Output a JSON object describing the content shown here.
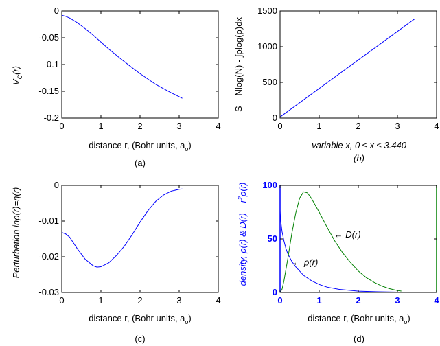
{
  "colors": {
    "blue": "#0000ff",
    "green": "#008000",
    "axis": "#000000"
  },
  "chart_data": [
    {
      "id": "a",
      "type": "line",
      "caption": "(a)",
      "ylabel_main": "V",
      "ylabel_sub": "C",
      "ylabel_tail": "(r)",
      "xlabel_main": "distance r, (Bohr units, a",
      "xlabel_sub": "o",
      "xlabel_tail": ")",
      "xlim": [
        0,
        4
      ],
      "ylim": [
        -0.2,
        0
      ],
      "xticks": [
        0,
        1,
        2,
        3,
        4
      ],
      "xtick_labels": [
        "0",
        "1",
        "2",
        "3",
        "4"
      ],
      "yticks": [
        -0.2,
        -0.15,
        -0.1,
        -0.05,
        0
      ],
      "ytick_labels": [
        "-0.2",
        "-0.15",
        "-0.1",
        "-0.05",
        "0"
      ],
      "series": [
        {
          "color": "#0000ff",
          "x": [
            0,
            0.1,
            0.2,
            0.4,
            0.6,
            0.8,
            1.0,
            1.2,
            1.5,
            1.8,
            2.0,
            2.4,
            2.8,
            3.08
          ],
          "y": [
            -0.008,
            -0.01,
            -0.013,
            -0.022,
            -0.033,
            -0.045,
            -0.058,
            -0.071,
            -0.089,
            -0.106,
            -0.117,
            -0.137,
            -0.153,
            -0.163
          ]
        }
      ]
    },
    {
      "id": "b",
      "type": "line",
      "caption": "(b)",
      "ylabel": "S = Nlog(N) - ∫ρlog(ρ)dx",
      "xlabel": "variable x, 0 ≤ x ≤ 3.440",
      "xlim": [
        0,
        4
      ],
      "ylim": [
        0,
        1500
      ],
      "xticks": [
        0,
        1,
        2,
        3,
        4
      ],
      "xtick_labels": [
        "0",
        "1",
        "2",
        "3",
        "4"
      ],
      "yticks": [
        0,
        500,
        1000,
        1500
      ],
      "ytick_labels": [
        "0",
        "500",
        "1000",
        "1500"
      ],
      "series": [
        {
          "color": "#0000ff",
          "x": [
            0,
            3.44
          ],
          "y": [
            15,
            1390
          ]
        }
      ]
    },
    {
      "id": "c",
      "type": "line",
      "caption": "(c)",
      "ylabel": "Perturbation inρ(r)=η(r)",
      "xlabel_main": "distance r, (Bohr units, a",
      "xlabel_sub": "o",
      "xlabel_tail": ")",
      "xlim": [
        0,
        4
      ],
      "ylim": [
        -0.03,
        0
      ],
      "xticks": [
        0,
        1,
        2,
        3,
        4
      ],
      "xtick_labels": [
        "0",
        "1",
        "2",
        "3",
        "4"
      ],
      "yticks": [
        -0.03,
        -0.02,
        -0.01,
        0
      ],
      "ytick_labels": [
        "-0.03",
        "-0.02",
        "-0.01",
        "0"
      ],
      "series": [
        {
          "color": "#0000ff",
          "x": [
            0,
            0.1,
            0.2,
            0.4,
            0.6,
            0.8,
            0.9,
            1.0,
            1.2,
            1.4,
            1.6,
            1.8,
            2.0,
            2.2,
            2.4,
            2.6,
            2.8,
            3.0,
            3.08
          ],
          "y": [
            -0.0132,
            -0.0136,
            -0.0145,
            -0.0178,
            -0.0207,
            -0.0225,
            -0.0229,
            -0.0228,
            -0.0217,
            -0.0196,
            -0.017,
            -0.0138,
            -0.0103,
            -0.0071,
            -0.0045,
            -0.0027,
            -0.0016,
            -0.0011,
            -0.001
          ]
        }
      ]
    },
    {
      "id": "d",
      "type": "line",
      "caption": "(d)",
      "ylabel": "density, ρ(r) & D(r) = r",
      "ylabel_sup": "2",
      "ylabel_tail": "ρ(r)",
      "xlabel_main": "distance r, (Bohr units, a",
      "xlabel_sub": "o",
      "xlabel_tail": ")",
      "xlim": [
        0,
        4
      ],
      "ylim": [
        0,
        100
      ],
      "xticks": [
        0,
        1,
        2,
        3,
        4
      ],
      "xtick_labels": [
        "0",
        "1",
        "2",
        "3",
        "4"
      ],
      "yticks": [
        0,
        50,
        100
      ],
      "ytick_labels": [
        "0",
        "50",
        "100"
      ],
      "annotations": [
        {
          "text": "← D(r)",
          "x": 1.38,
          "y": 54
        },
        {
          "text": "← ρ(r)",
          "x": 0.32,
          "y": 28
        }
      ],
      "series": [
        {
          "color": "#0000ff",
          "x": [
            0,
            0.02,
            0.05,
            0.1,
            0.15,
            0.2,
            0.3,
            0.4,
            0.5,
            0.6,
            0.8,
            1.0,
            1.2,
            1.5,
            2.0,
            2.5,
            3.0,
            3.1
          ],
          "y": [
            76,
            66,
            57,
            48,
            41,
            36,
            29,
            24,
            20,
            16,
            11,
            7.5,
            5,
            3,
            1.2,
            0.6,
            0.3,
            0.3
          ]
        },
        {
          "color": "#008000",
          "x": [
            0,
            0.05,
            0.1,
            0.2,
            0.3,
            0.4,
            0.5,
            0.6,
            0.7,
            0.8,
            1.0,
            1.2,
            1.4,
            1.6,
            1.8,
            2.0,
            2.2,
            2.4,
            2.6,
            2.8,
            3.0,
            3.1
          ],
          "y": [
            0,
            3,
            11,
            32,
            55,
            74,
            88,
            94,
            93,
            88,
            75,
            61,
            48,
            37,
            28,
            20,
            14,
            9.5,
            6,
            3.5,
            1.8,
            1.3
          ]
        }
      ]
    }
  ]
}
